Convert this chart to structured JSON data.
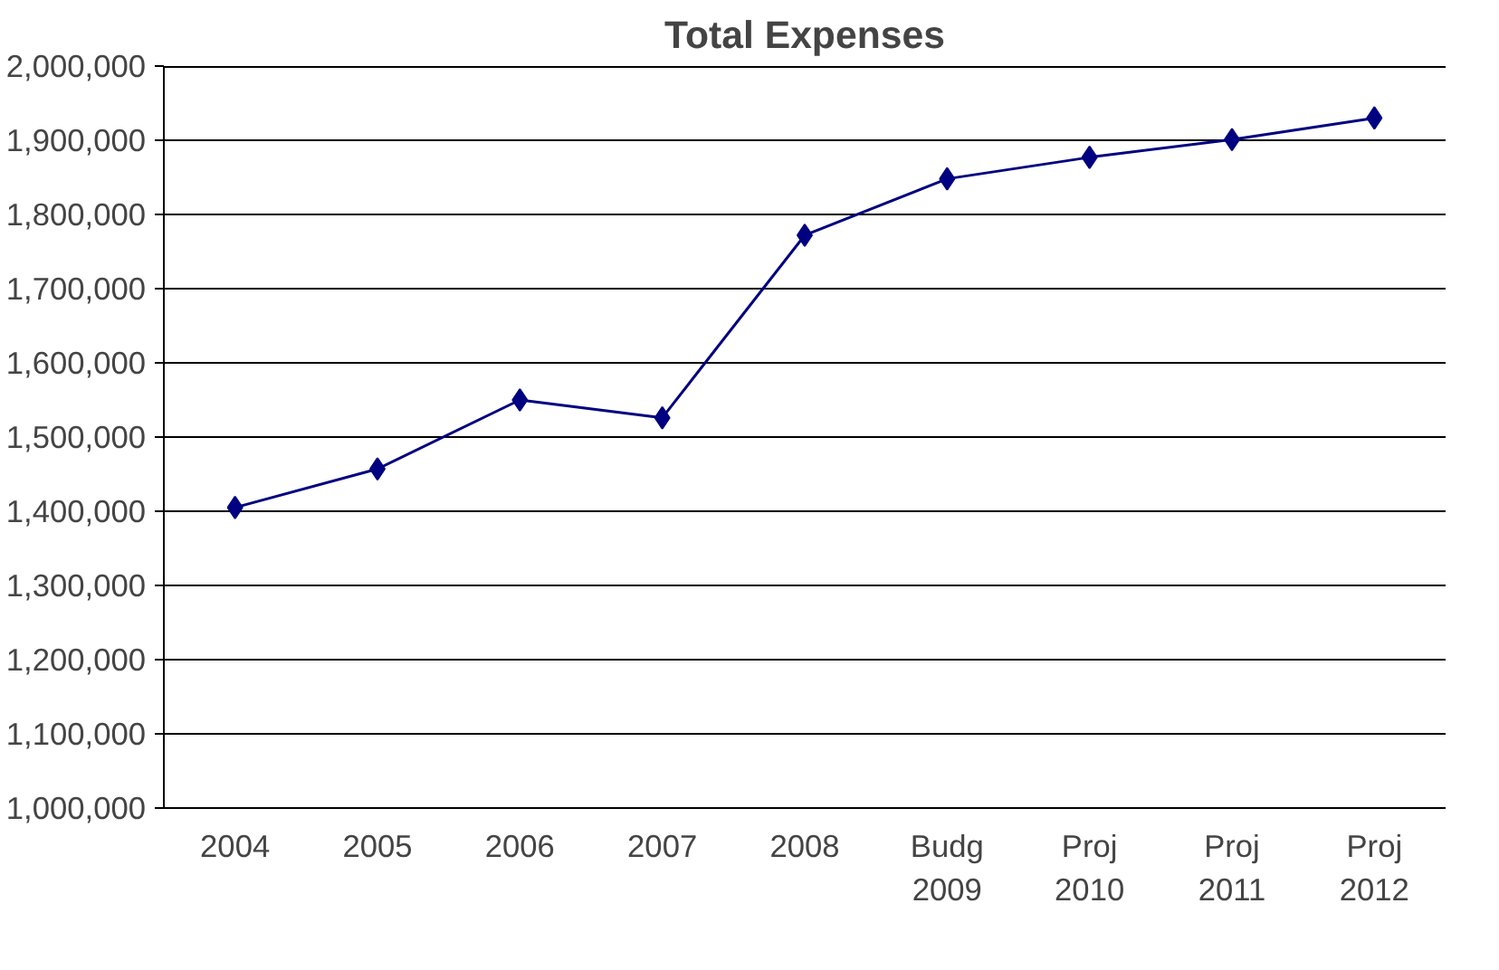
{
  "chart_data": {
    "type": "line",
    "title": "Total Expenses",
    "categories": [
      "2004",
      "2005",
      "2006",
      "2007",
      "2008",
      "Budg 2009",
      "Proj 2010",
      "Proj 2011",
      "Proj 2012"
    ],
    "series": [
      {
        "color": "#000080",
        "values": [
          1405000,
          1457000,
          1550000,
          1526000,
          1772000,
          1848000,
          1877000,
          1901000,
          1930000
        ]
      }
    ],
    "ylim": [
      1000000,
      2000000
    ],
    "yticks": [
      {
        "value": 1000000,
        "label": "1,000,000"
      },
      {
        "value": 1100000,
        "label": "1,100,000"
      },
      {
        "value": 1200000,
        "label": "1,200,000"
      },
      {
        "value": 1300000,
        "label": "1,300,000"
      },
      {
        "value": 1400000,
        "label": "1,400,000"
      },
      {
        "value": 1500000,
        "label": "1,500,000"
      },
      {
        "value": 1600000,
        "label": "1,600,000"
      },
      {
        "value": 1700000,
        "label": "1,700,000"
      },
      {
        "value": 1800000,
        "label": "1,800,000"
      },
      {
        "value": 1900000,
        "label": "1,900,000"
      },
      {
        "value": 2000000,
        "label": "2,000,000"
      }
    ],
    "grid": "y",
    "marker": "diamond",
    "line_style": "solid"
  }
}
